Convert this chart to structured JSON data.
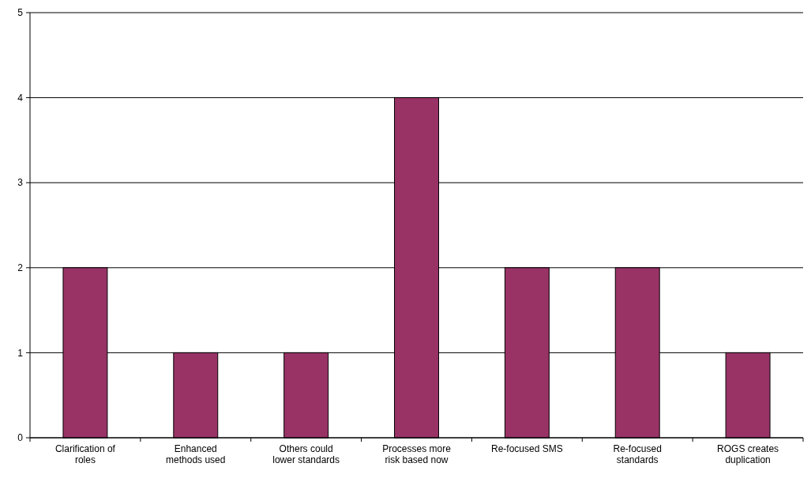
{
  "chart_data": {
    "type": "bar",
    "categories": [
      "Clarification of roles",
      "Enhanced methods used",
      "Others could lower standards",
      "Processes more risk based now",
      "Re-focused SMS",
      "Re-focused standards",
      "ROGS creates duplication"
    ],
    "values": [
      2,
      1,
      1,
      4,
      2,
      2,
      1
    ],
    "color": "#993366",
    "ylim": [
      0,
      5
    ],
    "yticks": [
      0,
      1,
      2,
      3,
      4,
      5
    ],
    "grid": "y"
  }
}
